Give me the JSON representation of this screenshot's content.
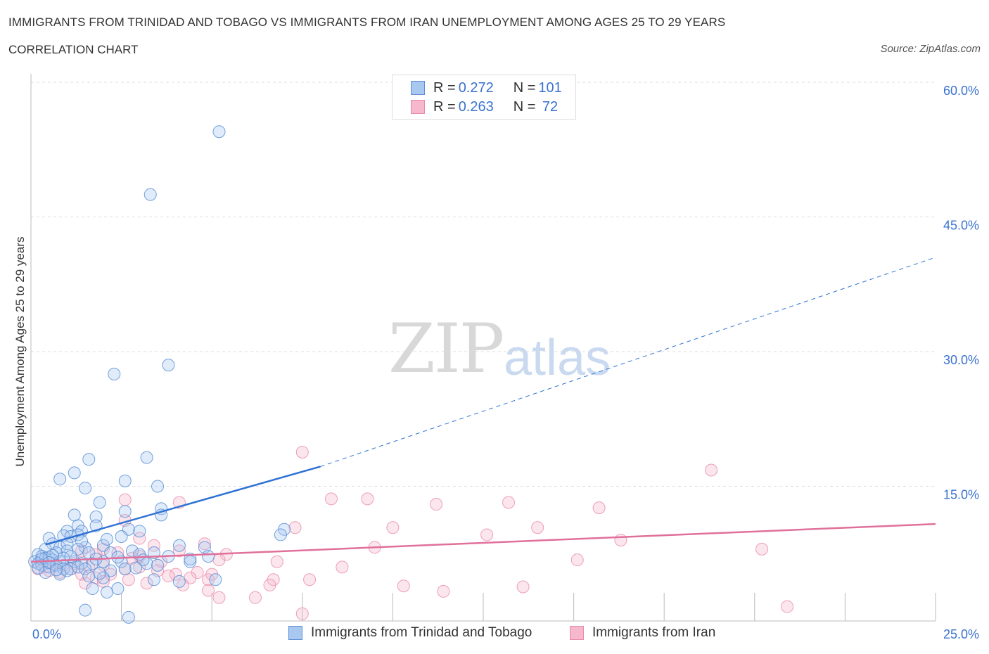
{
  "title": "IMMIGRANTS FROM TRINIDAD AND TOBAGO VS IMMIGRANTS FROM IRAN UNEMPLOYMENT AMONG AGES 25 TO 29 YEARS",
  "subtitle": "CORRELATION CHART",
  "source": "Source: ZipAtlas.com",
  "watermark": {
    "zip": "ZIP",
    "atlas": "atlas"
  },
  "legend": {
    "rows": [
      {
        "r_label": "R = ",
        "r_value": "0.272",
        "n_label": "N = ",
        "n_value": "101"
      },
      {
        "r_label": "R = ",
        "r_value": "0.263",
        "n_label": "N = ",
        "n_value": " 72"
      }
    ]
  },
  "colors": {
    "blue_fill": "#a9c8f0",
    "blue_stroke": "#5b8fd6",
    "blue_line": "#2f72d4",
    "pink_fill": "#f5b8cc",
    "pink_stroke": "#e88aa8",
    "pink_line": "#e0709a",
    "axis_label": "#3a72d0",
    "grid": "#dddddd"
  },
  "chart_data": {
    "type": "scatter",
    "title": "IMMIGRANTS FROM TRINIDAD AND TOBAGO VS IMMIGRANTS FROM IRAN UNEMPLOYMENT AMONG AGES 25 TO 29 YEARS",
    "xlabel": "",
    "ylabel": "Unemployment Among Ages 25 to 29 years",
    "xlim": [
      0,
      25
    ],
    "ylim": [
      0,
      60
    ],
    "x_tick_labels": [
      "0.0%",
      "25.0%"
    ],
    "y_tick_labels": [
      "15.0%",
      "30.0%",
      "45.0%",
      "60.0%"
    ],
    "y_ticks": [
      15,
      30,
      45,
      60
    ],
    "series": [
      {
        "name": "Immigrants from Trinidad and Tobago",
        "R": 0.272,
        "N": 101,
        "trend": {
          "solid": [
            [
              0.4,
              8.5
            ],
            [
              8.0,
              17.2
            ]
          ],
          "dashed": [
            [
              8.0,
              17.2
            ],
            [
              25.0,
              40.5
            ]
          ]
        },
        "points": [
          [
            5.2,
            54.5
          ],
          [
            3.3,
            47.5
          ],
          [
            3.8,
            28.5
          ],
          [
            2.3,
            27.5
          ],
          [
            1.6,
            18.0
          ],
          [
            3.2,
            18.2
          ],
          [
            1.2,
            16.5
          ],
          [
            0.8,
            15.8
          ],
          [
            2.6,
            15.6
          ],
          [
            3.5,
            15.0
          ],
          [
            1.5,
            14.8
          ],
          [
            1.9,
            13.2
          ],
          [
            3.6,
            12.5
          ],
          [
            2.6,
            12.2
          ],
          [
            1.2,
            11.8
          ],
          [
            1.8,
            11.6
          ],
          [
            3.6,
            11.8
          ],
          [
            1.3,
            10.6
          ],
          [
            1.8,
            10.6
          ],
          [
            1.0,
            10.0
          ],
          [
            1.4,
            10.0
          ],
          [
            2.7,
            10.2
          ],
          [
            3.0,
            10.0
          ],
          [
            7.0,
            10.2
          ],
          [
            6.9,
            9.6
          ],
          [
            0.5,
            9.2
          ],
          [
            0.9,
            9.5
          ],
          [
            1.1,
            9.4
          ],
          [
            1.3,
            9.6
          ],
          [
            2.5,
            9.4
          ],
          [
            0.6,
            8.6
          ],
          [
            0.8,
            8.2
          ],
          [
            1.0,
            8.6
          ],
          [
            1.5,
            8.2
          ],
          [
            2.0,
            8.4
          ],
          [
            0.4,
            8.0
          ],
          [
            0.7,
            7.6
          ],
          [
            1.0,
            7.8
          ],
          [
            1.3,
            8.0
          ],
          [
            1.6,
            7.6
          ],
          [
            2.2,
            7.6
          ],
          [
            2.8,
            7.8
          ],
          [
            3.0,
            7.4
          ],
          [
            3.4,
            7.6
          ],
          [
            4.1,
            8.4
          ],
          [
            4.8,
            8.2
          ],
          [
            0.2,
            7.4
          ],
          [
            0.3,
            7.2
          ],
          [
            0.4,
            7.0
          ],
          [
            0.5,
            7.1
          ],
          [
            0.6,
            6.8
          ],
          [
            0.8,
            6.6
          ],
          [
            0.9,
            7.0
          ],
          [
            1.2,
            6.6
          ],
          [
            1.4,
            6.4
          ],
          [
            1.7,
            6.4
          ],
          [
            2.0,
            6.6
          ],
          [
            2.5,
            6.6
          ],
          [
            3.2,
            6.4
          ],
          [
            3.8,
            7.2
          ],
          [
            4.4,
            6.6
          ],
          [
            4.9,
            7.2
          ],
          [
            0.1,
            6.6
          ],
          [
            0.2,
            6.4
          ],
          [
            0.3,
            6.2
          ],
          [
            0.5,
            6.0
          ],
          [
            0.7,
            6.2
          ],
          [
            0.9,
            5.8
          ],
          [
            1.1,
            5.8
          ],
          [
            1.3,
            6.0
          ],
          [
            1.5,
            5.8
          ],
          [
            2.2,
            5.6
          ],
          [
            2.6,
            5.8
          ],
          [
            3.5,
            6.2
          ],
          [
            0.4,
            5.4
          ],
          [
            0.8,
            5.2
          ],
          [
            1.0,
            5.6
          ],
          [
            1.6,
            5.0
          ],
          [
            2.0,
            4.8
          ],
          [
            3.4,
            4.6
          ],
          [
            4.1,
            4.4
          ],
          [
            5.1,
            4.6
          ],
          [
            1.7,
            3.6
          ],
          [
            2.1,
            3.2
          ],
          [
            2.4,
            3.6
          ],
          [
            1.5,
            1.2
          ],
          [
            2.7,
            0.4
          ],
          [
            0.3,
            6.9
          ],
          [
            0.6,
            7.3
          ],
          [
            1.1,
            7.2
          ],
          [
            1.8,
            6.9
          ],
          [
            2.4,
            7.1
          ],
          [
            3.1,
            6.8
          ],
          [
            0.5,
            6.5
          ],
          [
            0.7,
            5.7
          ],
          [
            1.9,
            5.3
          ],
          [
            2.9,
            5.9
          ],
          [
            4.4,
            6.9
          ],
          [
            0.2,
            5.9
          ],
          [
            1.4,
            8.9
          ],
          [
            2.1,
            9.1
          ]
        ]
      },
      {
        "name": "Immigrants from Iran",
        "R": 0.263,
        "N": 72,
        "trend": {
          "solid": [
            [
              0.0,
              6.6
            ],
            [
              25.0,
              10.8
            ]
          ]
        },
        "points": [
          [
            7.5,
            18.8
          ],
          [
            18.8,
            16.8
          ],
          [
            8.3,
            13.6
          ],
          [
            9.3,
            13.6
          ],
          [
            11.2,
            13.0
          ],
          [
            13.2,
            13.2
          ],
          [
            15.7,
            12.6
          ],
          [
            2.6,
            13.5
          ],
          [
            4.1,
            13.2
          ],
          [
            7.3,
            10.4
          ],
          [
            10.0,
            10.4
          ],
          [
            12.6,
            9.6
          ],
          [
            14.0,
            10.4
          ],
          [
            2.6,
            11.2
          ],
          [
            16.3,
            9.0
          ],
          [
            20.2,
            8.0
          ],
          [
            9.5,
            8.2
          ],
          [
            3.0,
            9.2
          ],
          [
            4.8,
            8.6
          ],
          [
            2.0,
            8.0
          ],
          [
            3.4,
            8.4
          ],
          [
            3.0,
            7.2
          ],
          [
            4.1,
            7.8
          ],
          [
            5.4,
            7.4
          ],
          [
            1.4,
            7.8
          ],
          [
            1.8,
            7.4
          ],
          [
            2.4,
            7.6
          ],
          [
            2.8,
            7.0
          ],
          [
            3.6,
            6.6
          ],
          [
            5.2,
            6.8
          ],
          [
            6.8,
            6.6
          ],
          [
            8.6,
            6.0
          ],
          [
            15.1,
            6.8
          ],
          [
            0.3,
            6.6
          ],
          [
            0.6,
            6.4
          ],
          [
            0.9,
            6.2
          ],
          [
            1.2,
            6.4
          ],
          [
            1.6,
            6.0
          ],
          [
            2.0,
            6.2
          ],
          [
            2.6,
            5.8
          ],
          [
            3.0,
            6.0
          ],
          [
            3.5,
            5.6
          ],
          [
            4.0,
            5.2
          ],
          [
            4.6,
            5.4
          ],
          [
            0.2,
            5.8
          ],
          [
            0.5,
            5.6
          ],
          [
            0.8,
            5.4
          ],
          [
            1.1,
            5.8
          ],
          [
            1.4,
            5.2
          ],
          [
            1.8,
            4.8
          ],
          [
            2.2,
            5.2
          ],
          [
            2.7,
            4.6
          ],
          [
            3.2,
            4.2
          ],
          [
            3.8,
            5.0
          ],
          [
            4.4,
            4.8
          ],
          [
            4.9,
            4.6
          ],
          [
            5.0,
            5.2
          ],
          [
            6.7,
            4.6
          ],
          [
            7.7,
            4.6
          ],
          [
            0.4,
            6.0
          ],
          [
            1.5,
            4.2
          ],
          [
            2.0,
            4.4
          ],
          [
            4.2,
            4.0
          ],
          [
            4.9,
            3.4
          ],
          [
            6.6,
            4.0
          ],
          [
            5.2,
            2.6
          ],
          [
            6.2,
            2.6
          ],
          [
            10.3,
            3.9
          ],
          [
            11.4,
            3.3
          ],
          [
            13.6,
            3.8
          ],
          [
            7.5,
            0.8
          ],
          [
            20.9,
            1.6
          ]
        ]
      }
    ]
  }
}
